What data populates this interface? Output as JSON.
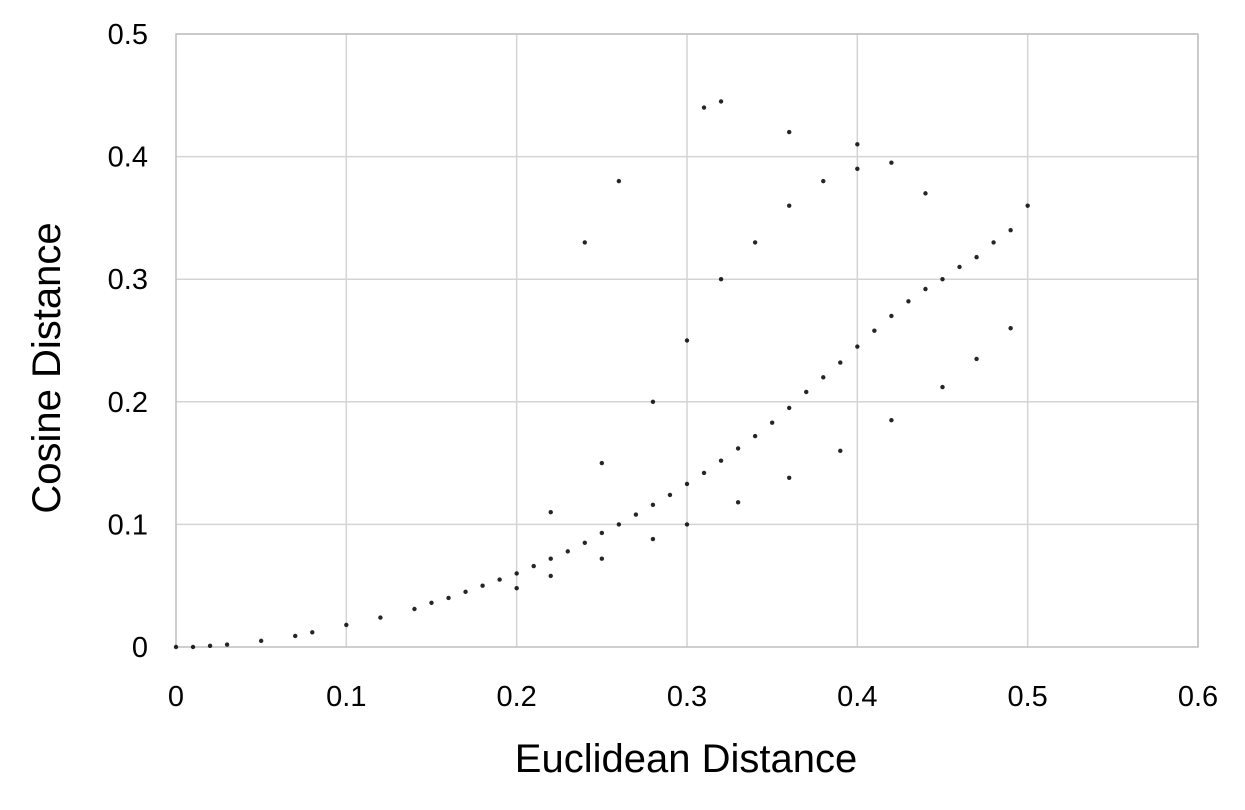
{
  "chart_data": {
    "type": "scatter",
    "title": "",
    "xlabel": "Euclidean Distance",
    "ylabel": "Cosine Distance",
    "xlim": [
      0,
      0.6
    ],
    "ylim": [
      0,
      0.5
    ],
    "x_ticks": [
      0,
      0.1,
      0.2,
      0.3,
      0.4,
      0.5,
      0.6
    ],
    "y_ticks": [
      0,
      0.1,
      0.2,
      0.3,
      0.4,
      0.5
    ],
    "x_tick_labels": [
      "0",
      "0.1",
      "0.2",
      "0.3",
      "0.4",
      "0.5",
      "0.6"
    ],
    "y_tick_labels": [
      "0",
      "0.1",
      "0.2",
      "0.3",
      "0.4",
      "0.5"
    ],
    "grid": true,
    "legend": "none",
    "marker_color": "#000000",
    "series": [
      {
        "points": [
          [
            0.0,
            0.0
          ],
          [
            0.01,
            0.0
          ],
          [
            0.02,
            0.001
          ],
          [
            0.03,
            0.002
          ],
          [
            0.05,
            0.005
          ],
          [
            0.07,
            0.009
          ],
          [
            0.08,
            0.012
          ],
          [
            0.1,
            0.018
          ],
          [
            0.12,
            0.024
          ],
          [
            0.14,
            0.031
          ],
          [
            0.15,
            0.036
          ],
          [
            0.16,
            0.04
          ],
          [
            0.17,
            0.045
          ],
          [
            0.18,
            0.05
          ],
          [
            0.19,
            0.055
          ],
          [
            0.2,
            0.06
          ],
          [
            0.21,
            0.066
          ],
          [
            0.22,
            0.072
          ],
          [
            0.23,
            0.078
          ],
          [
            0.24,
            0.085
          ],
          [
            0.25,
            0.093
          ],
          [
            0.26,
            0.1
          ],
          [
            0.27,
            0.108
          ],
          [
            0.28,
            0.116
          ],
          [
            0.29,
            0.124
          ],
          [
            0.3,
            0.133
          ],
          [
            0.31,
            0.142
          ],
          [
            0.32,
            0.152
          ],
          [
            0.33,
            0.162
          ],
          [
            0.34,
            0.172
          ],
          [
            0.35,
            0.183
          ],
          [
            0.36,
            0.195
          ],
          [
            0.37,
            0.208
          ],
          [
            0.38,
            0.22
          ],
          [
            0.39,
            0.232
          ],
          [
            0.4,
            0.245
          ],
          [
            0.41,
            0.258
          ],
          [
            0.42,
            0.27
          ],
          [
            0.43,
            0.282
          ],
          [
            0.44,
            0.292
          ],
          [
            0.45,
            0.3
          ],
          [
            0.46,
            0.31
          ],
          [
            0.47,
            0.318
          ],
          [
            0.48,
            0.33
          ],
          [
            0.49,
            0.34
          ],
          [
            0.5,
            0.36
          ],
          [
            0.2,
            0.048
          ],
          [
            0.22,
            0.058
          ],
          [
            0.25,
            0.072
          ],
          [
            0.28,
            0.088
          ],
          [
            0.3,
            0.1
          ],
          [
            0.33,
            0.118
          ],
          [
            0.36,
            0.138
          ],
          [
            0.39,
            0.16
          ],
          [
            0.42,
            0.185
          ],
          [
            0.45,
            0.212
          ],
          [
            0.47,
            0.235
          ],
          [
            0.49,
            0.26
          ],
          [
            0.22,
            0.11
          ],
          [
            0.25,
            0.15
          ],
          [
            0.28,
            0.2
          ],
          [
            0.3,
            0.25
          ],
          [
            0.32,
            0.3
          ],
          [
            0.34,
            0.33
          ],
          [
            0.36,
            0.36
          ],
          [
            0.38,
            0.38
          ],
          [
            0.4,
            0.39
          ],
          [
            0.42,
            0.395
          ],
          [
            0.44,
            0.37
          ],
          [
            0.31,
            0.44
          ],
          [
            0.32,
            0.445
          ],
          [
            0.36,
            0.42
          ],
          [
            0.4,
            0.41
          ],
          [
            0.26,
            0.38
          ],
          [
            0.24,
            0.33
          ]
        ]
      }
    ]
  }
}
